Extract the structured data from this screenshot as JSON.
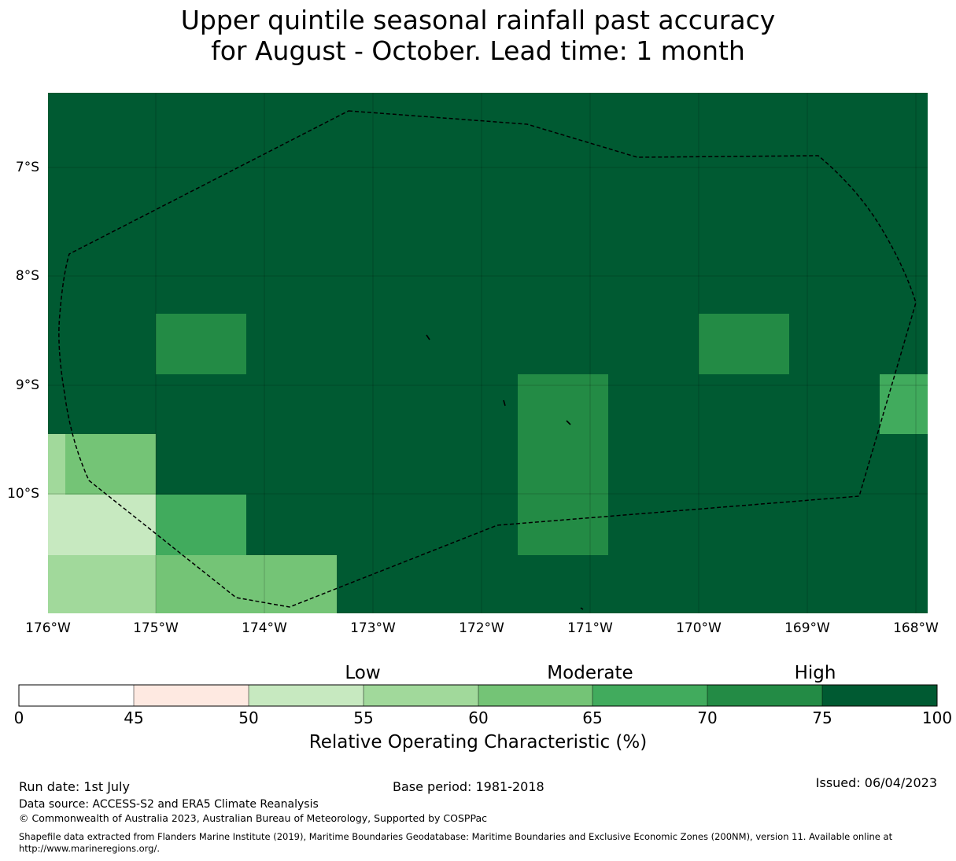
{
  "title": {
    "line1": "Upper quintile seasonal rainfall past accuracy",
    "line2": "for August - October. Lead time: 1 month"
  },
  "map": {
    "lat_labels": [
      "7°S",
      "8°S",
      "9°S",
      "10°S"
    ],
    "lon_labels": [
      "176°W",
      "175°W",
      "174°W",
      "173°W",
      "172°W",
      "171°W",
      "170°W",
      "169°W",
      "168°W"
    ],
    "background_color": "#005a32",
    "boundary": "dashed EEZ outline"
  },
  "colorbar": {
    "categories": {
      "low": "Low",
      "moderate": "Moderate",
      "high": "High"
    },
    "ticks": [
      "0",
      "45",
      "50",
      "55",
      "60",
      "65",
      "70",
      "75",
      "100"
    ],
    "colors": [
      "#ffffff",
      "#fee9e1",
      "#c7e9c0",
      "#a1d99b",
      "#74c476",
      "#41ab5d",
      "#238b45",
      "#005a32"
    ],
    "label": "Relative Operating Characteristic (%)"
  },
  "footer": {
    "run_date": "Run date: 1st July",
    "base_period": "Base period: 1981-2018",
    "issued": "Issued: 06/04/2023",
    "data_source": "Data source: ACCESS-S2 and ERA5 Climate Reanalysis",
    "copyright": "© Commonwealth of Australia 2023, Australian Bureau of Meteorology, Supported by COSPPac",
    "shapefile_line1": "Shapefile data extracted from Flanders Marine Institute (2019), Maritime Boundaries Geodatabase: Maritime Boundaries and Exclusive Economic Zones (200NM), version 11. Available online at",
    "shapefile_line2": "http://www.marineregions.org/."
  }
}
